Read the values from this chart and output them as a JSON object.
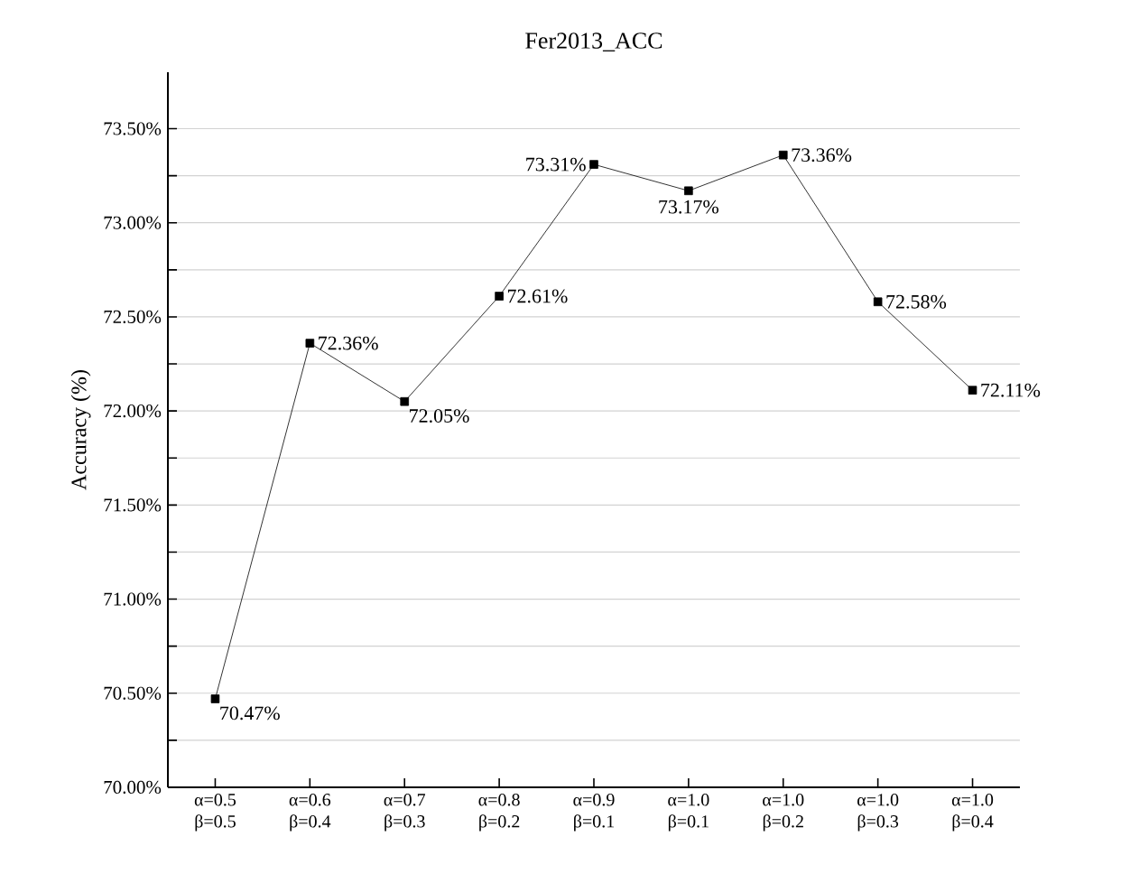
{
  "chart_data": {
    "type": "line",
    "title": "Fer2013_ACC",
    "ylabel": "Accuracy (%)",
    "categories": [
      "α=0.5 β=0.5",
      "α=0.6 β=0.4",
      "α=0.7 β=0.3",
      "α=0.8 β=0.2",
      "α=0.9 β=0.1",
      "α=1.0 β=0.1",
      "α=1.0 β=0.2",
      "α=1.0 β=0.3",
      "α=1.0 β=0.4"
    ],
    "series": [
      {
        "color": "#000000",
        "values": [
          70.47,
          72.36,
          72.05,
          72.61,
          73.31,
          73.17,
          73.36,
          72.58,
          72.11
        ],
        "value_labels": [
          "70.47%",
          "72.36%",
          "72.05%",
          "72.61%",
          "73.31%",
          "73.17%",
          "73.36%",
          "72.58%",
          "72.11%"
        ]
      }
    ],
    "ylim": [
      70,
      73.8
    ],
    "yticks": [
      {
        "value": 70,
        "label": "70.00%"
      },
      {
        "value": 70.25,
        "label": null
      },
      {
        "value": 70.5,
        "label": "70.50%"
      },
      {
        "value": 70.75,
        "label": null
      },
      {
        "value": 71,
        "label": "71.00%"
      },
      {
        "value": 71.25,
        "label": null
      },
      {
        "value": 71.5,
        "label": "71.50%"
      },
      {
        "value": 71.75,
        "label": null
      },
      {
        "value": 72,
        "label": "72.00%"
      },
      {
        "value": 72.25,
        "label": null
      },
      {
        "value": 72.5,
        "label": "72.50%"
      },
      {
        "value": 72.75,
        "label": null
      },
      {
        "value": 73,
        "label": "73.00%"
      },
      {
        "value": 73.25,
        "label": null
      },
      {
        "value": 73.5,
        "label": "73.50%"
      }
    ],
    "grid": "y",
    "marker": "square",
    "line_style": "solid"
  }
}
